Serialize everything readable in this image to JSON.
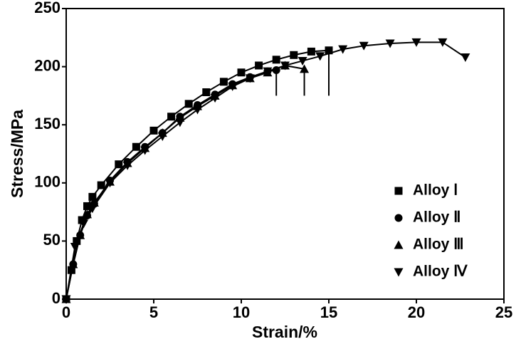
{
  "chart_data": {
    "type": "line",
    "x_label": "Strain/%",
    "y_label": "Stress/MPa",
    "xlim": [
      0,
      25
    ],
    "xticks": [
      0,
      5,
      10,
      15,
      20,
      25
    ],
    "ylim": [
      0,
      250
    ],
    "yticks": [
      0,
      50,
      100,
      150,
      200,
      250
    ],
    "grid": false,
    "legend": "lower right",
    "series": [
      {
        "name": "Alloy Ⅰ",
        "color": "#000000",
        "marker": "square",
        "x": [
          0,
          0.3,
          0.6,
          0.9,
          1.2,
          1.5,
          2,
          3,
          4,
          5,
          6,
          7,
          8,
          9,
          10,
          11,
          12,
          13,
          14,
          15,
          15
        ],
        "values": [
          0,
          25,
          50,
          68,
          80,
          88,
          98,
          116,
          131,
          145,
          157,
          168,
          178,
          187,
          195,
          201,
          206,
          210,
          213,
          214,
          175
        ]
      },
      {
        "name": "Alloy Ⅱ",
        "color": "#000000",
        "marker": "circle",
        "x": [
          0,
          0.4,
          0.8,
          1.2,
          1.6,
          2.5,
          3.5,
          4.5,
          5.5,
          6.5,
          7.5,
          8.5,
          9.5,
          10.5,
          11.5,
          12,
          12
        ],
        "values": [
          0,
          30,
          55,
          72,
          82,
          102,
          118,
          131,
          143,
          157,
          167,
          176,
          185,
          191,
          196,
          197,
          175
        ]
      },
      {
        "name": "Alloy Ⅲ",
        "color": "#000000",
        "marker": "triangle-up",
        "x": [
          0,
          0.4,
          0.8,
          1.2,
          1.6,
          2.5,
          3.5,
          4.5,
          5.5,
          6.5,
          7.5,
          8.5,
          9.5,
          10.5,
          11.5,
          12.5,
          13.6,
          13.6
        ],
        "values": [
          0,
          30,
          55,
          73,
          83,
          101,
          117,
          130,
          143,
          156,
          166,
          175,
          184,
          190,
          195,
          201,
          198,
          175
        ]
      },
      {
        "name": "Alloy Ⅳ",
        "color": "#000000",
        "marker": "triangle-down",
        "x": [
          0,
          0.5,
          1,
          1.5,
          2.5,
          3.5,
          4.5,
          5.5,
          6.5,
          7.5,
          8.5,
          9.5,
          10.5,
          11.5,
          12.5,
          13.5,
          14.5,
          15.8,
          17,
          18.5,
          20,
          21.5,
          22.8
        ],
        "values": [
          0,
          45,
          65,
          78,
          100,
          115,
          128,
          140,
          152,
          163,
          173,
          183,
          190,
          196,
          201,
          205,
          209,
          215,
          218,
          220,
          221,
          221,
          208
        ]
      }
    ]
  }
}
